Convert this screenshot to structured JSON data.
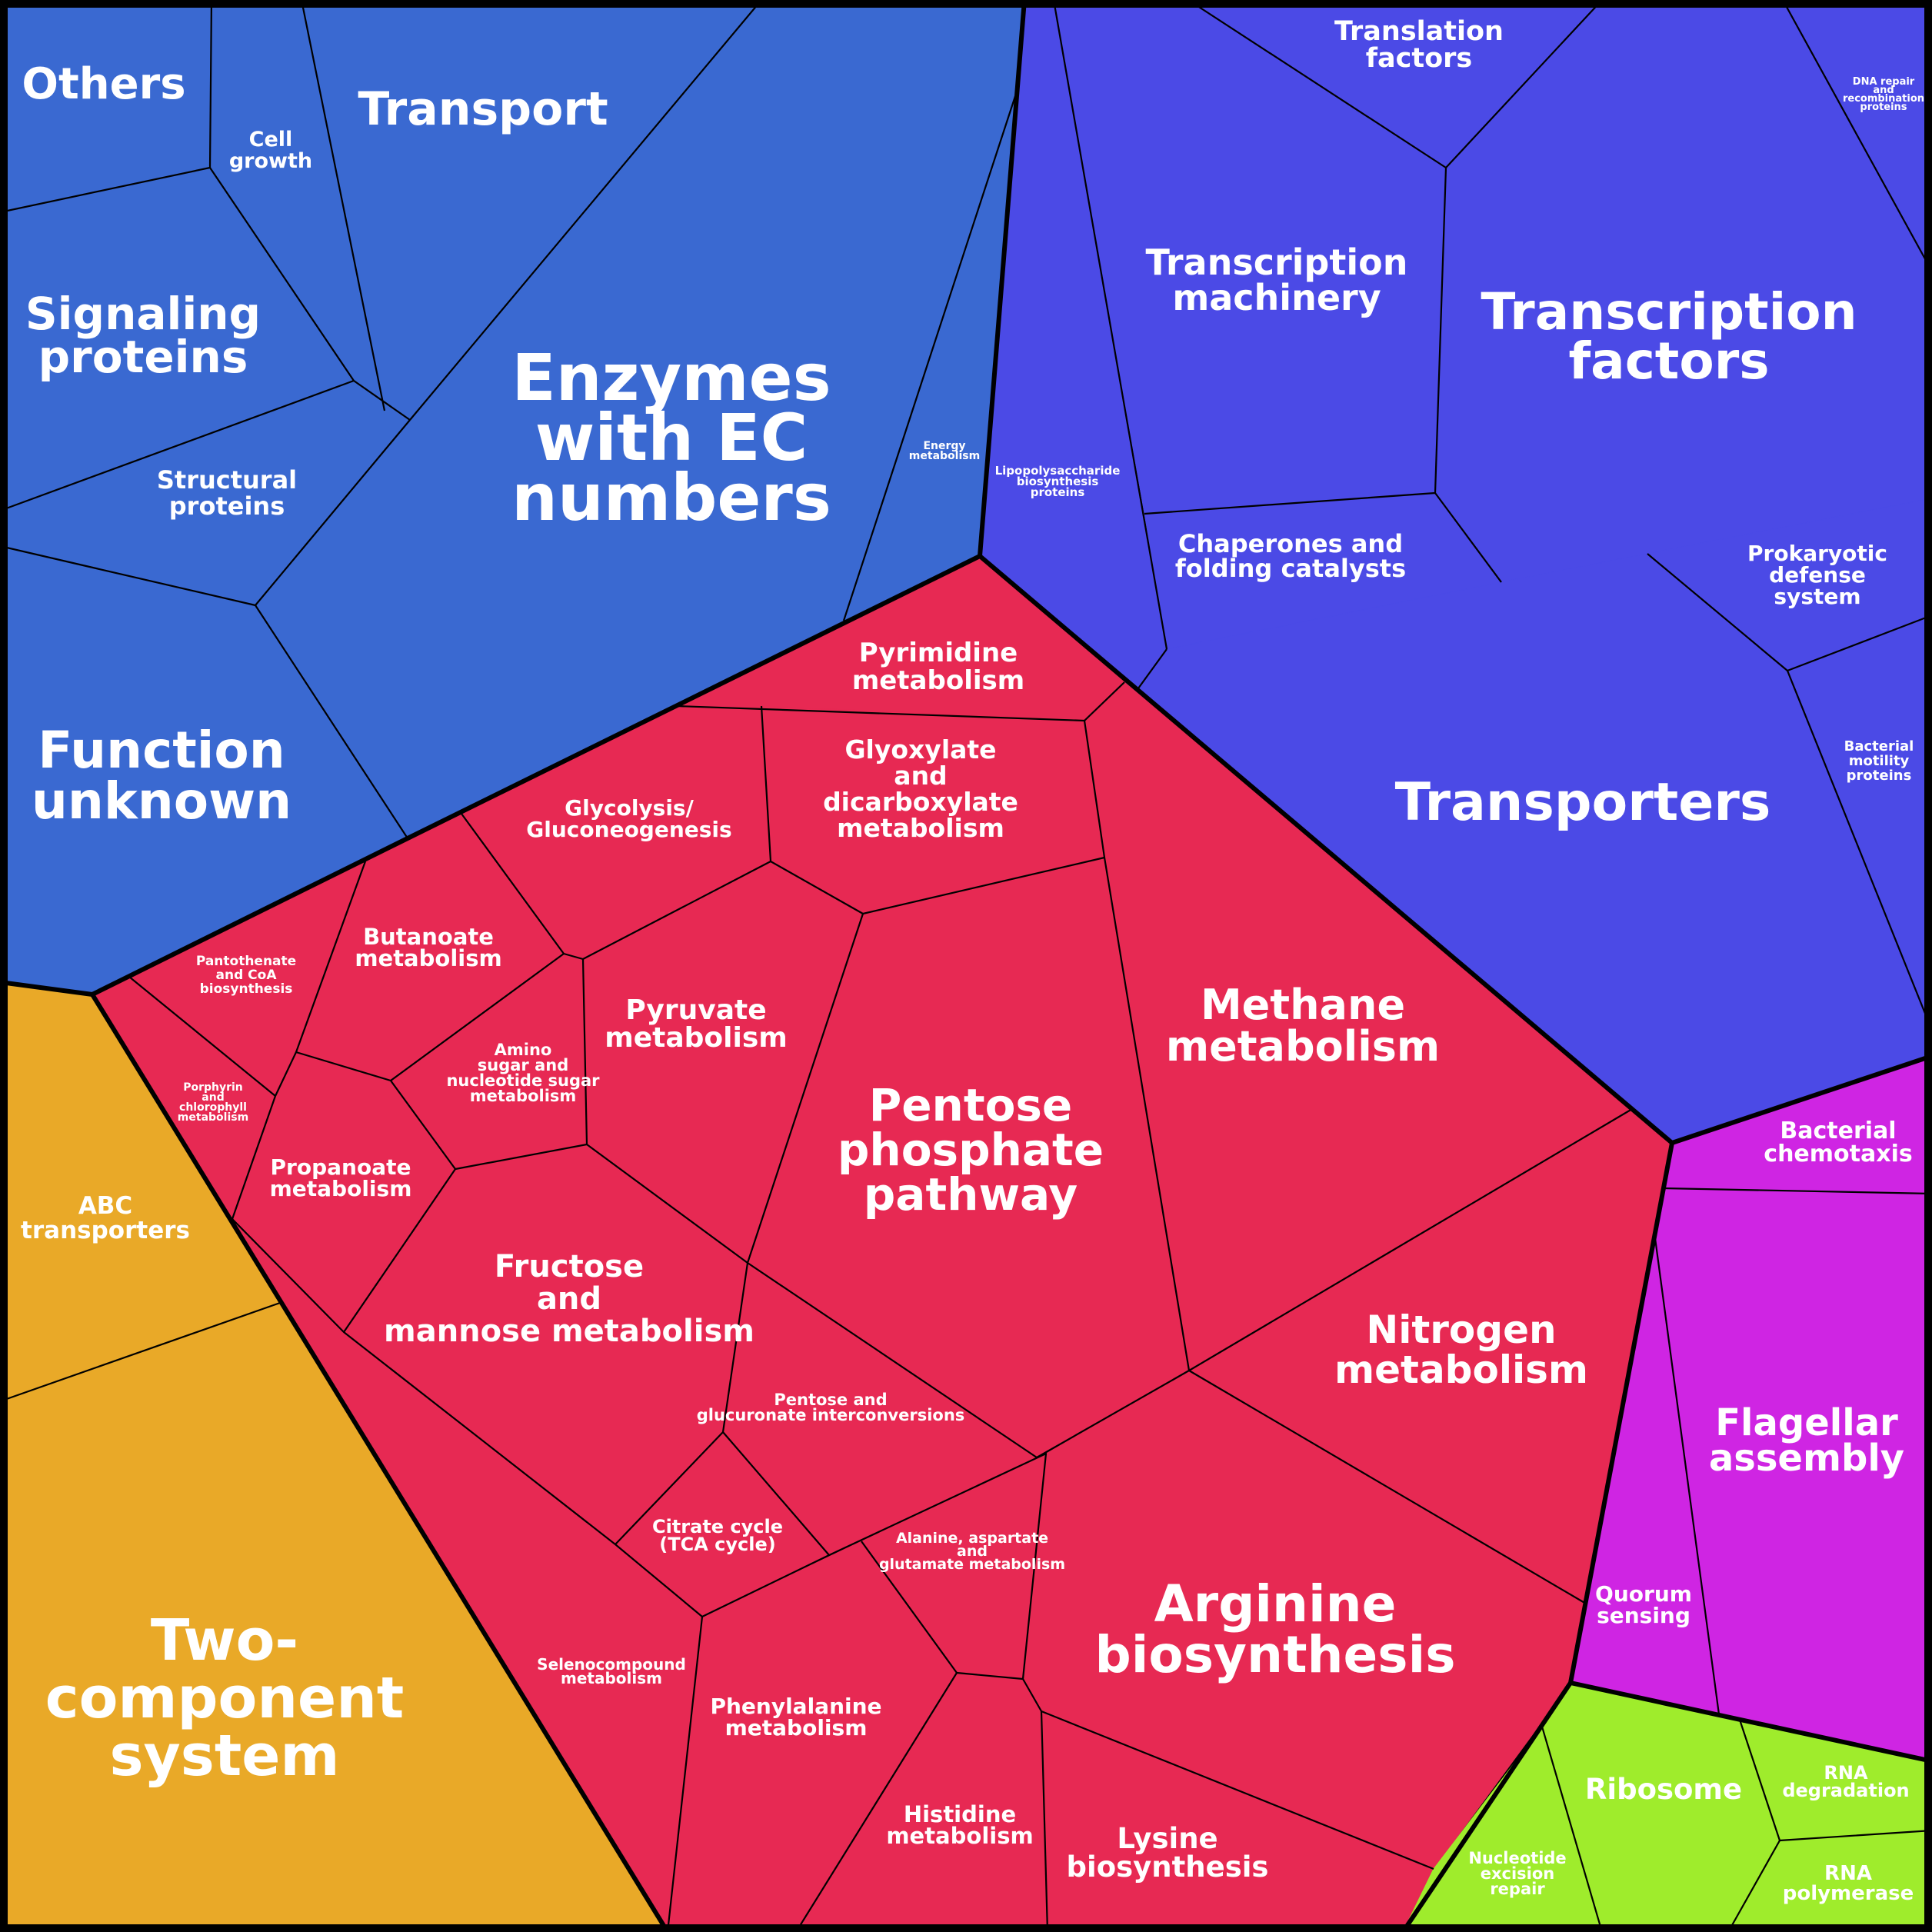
{
  "colors": {
    "blue_group": "#3a69d1",
    "violet_group": "#4b4ae6",
    "red_group": "#e72953",
    "orange_group": "#e9a928",
    "magenta_group": "#cf25e3",
    "green_group": "#9fec2c",
    "border": "#000000",
    "label": "#ffffff"
  },
  "cells": {
    "others": "Others",
    "cell_growth": "Cell growth",
    "transport": "Transport",
    "signaling_proteins": "Signaling proteins",
    "structural_proteins": "Structural proteins",
    "function_unknown": "Function unknown",
    "enzymes_ec": "Enzymes with EC numbers",
    "energy_metabolism": "Energy metabolism",
    "lipopolysaccharide": "Lipopolysaccharide biosynthesis proteins",
    "transcription_machinery": "Transcription machinery",
    "translation_factors": "Translation factors",
    "dna_repair": "DNA repair and recombination proteins",
    "transcription_factors": "Transcription factors",
    "chaperones": "Chaperones and folding catalysts",
    "prokaryotic_defense": "Prokaryotic defense system",
    "transporters": "Transporters",
    "bacterial_motility": "Bacterial motility proteins",
    "pyrimidine": "Pyrimidine metabolism",
    "glyoxylate": "Glyoxylate and dicarboxylate metabolism",
    "glycolysis": "Glycolysis/ Gluconeogenesis",
    "butanoate": "Butanoate metabolism",
    "pantothenate": "Pantothenate and CoA biosynthesis",
    "porphyrin": "Porphyrin and chlorophyll metabolism",
    "amino_sugar": "Amino sugar and nucleotide sugar metabolism",
    "pyruvate": "Pyruvate metabolism",
    "propanoate": "Propanoate metabolism",
    "pentose_phosphate": "Pentose phosphate pathway",
    "methane": "Methane metabolism",
    "fructose_mannose": "Fructose and mannose metabolism",
    "nitrogen": "Nitrogen metabolism",
    "pentose_glucuronate": "Pentose and glucuronate interconversions",
    "citrate_cycle": "Citrate cycle (TCA cycle)",
    "alanine": "Alanine, aspartate and glutamate metabolism",
    "arginine": "Arginine biosynthesis",
    "selenocompound": "Selenocompound metabolism",
    "phenylalanine": "Phenylalanine metabolism",
    "histidine": "Histidine metabolism",
    "lysine": "Lysine biosynthesis",
    "abc_transporters": "ABC transporters",
    "two_component": "Two- component system",
    "bacterial_chemotaxis": "Bacterial chemotaxis",
    "flagellar_assembly": "Flagellar assembly",
    "quorum_sensing": "Quorum sensing",
    "ribosome": "Ribosome",
    "rna_degradation": "RNA degradation",
    "rna_polymerase": "RNA polymerase",
    "nucleotide_excision": "Nucleotide excision repair"
  }
}
